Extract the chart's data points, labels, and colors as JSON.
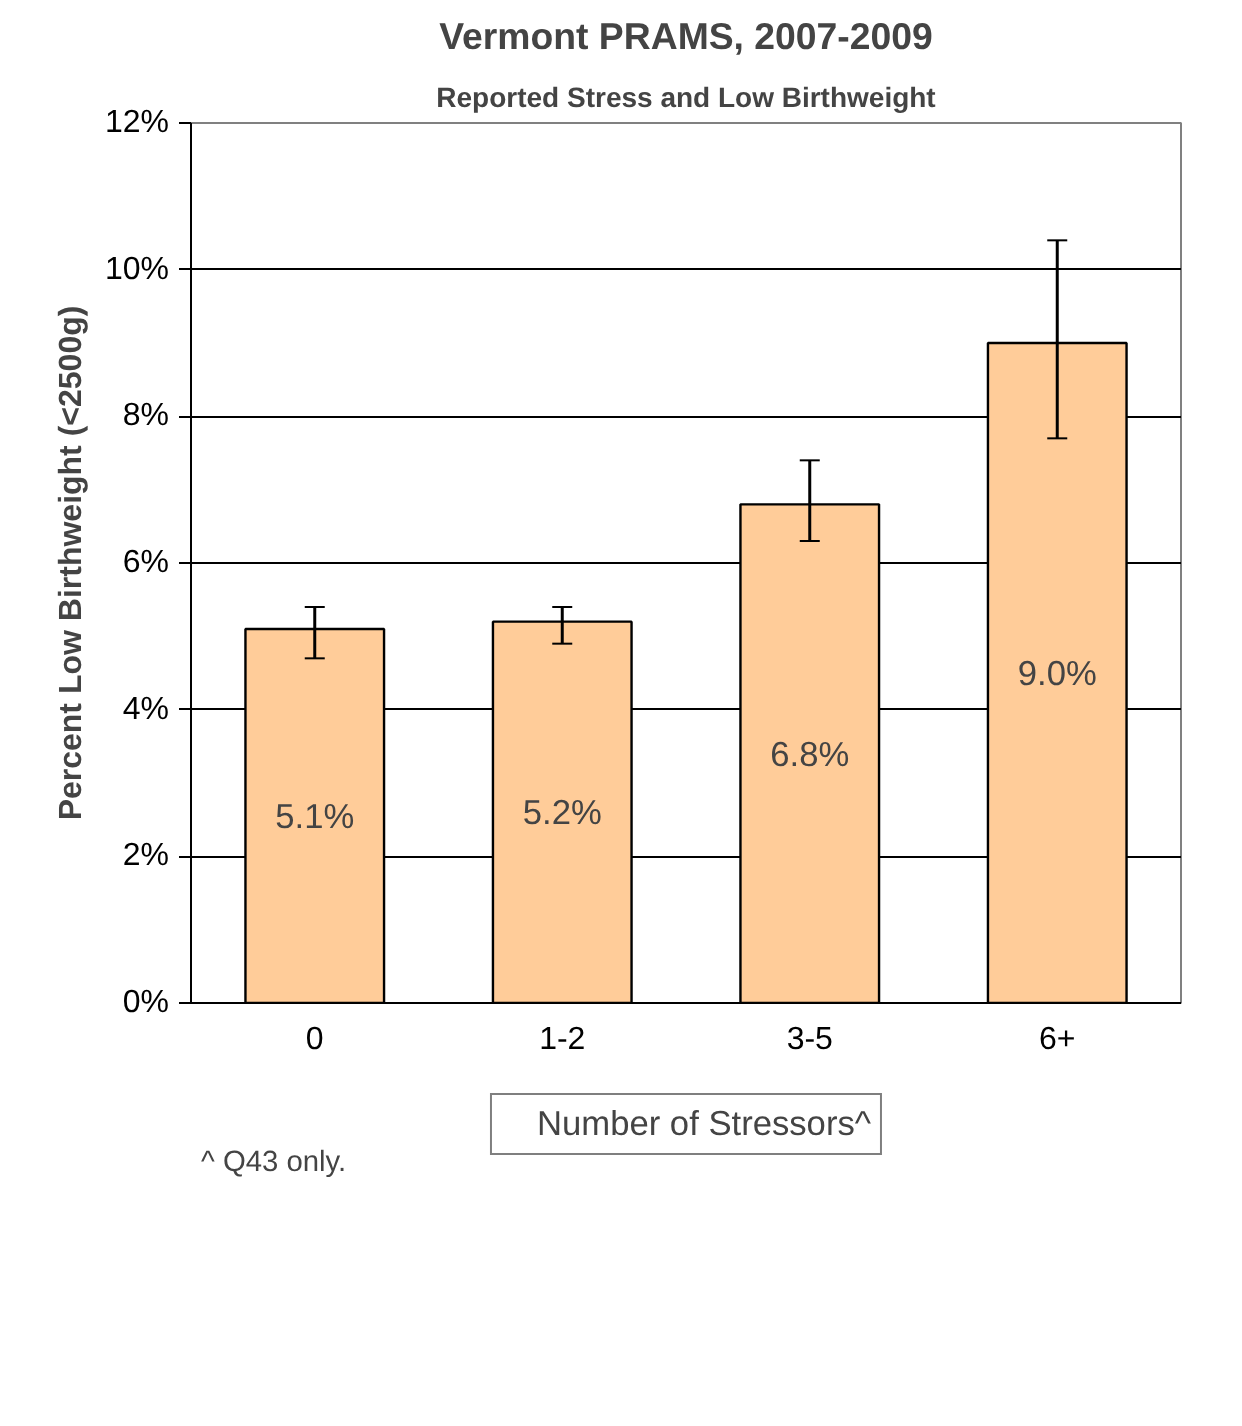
{
  "chart_data": {
    "type": "bar",
    "title": "Vermont PRAMS, 2007-2009",
    "subtitle": "Reported Stress and Low Birthweight",
    "ylabel": "Percent Low Birthweight (<2500g)",
    "categories": [
      "0",
      "1-2",
      "3-5",
      "6+"
    ],
    "series": [
      {
        "name": "Number of Stressors^",
        "color": "#ffcc99",
        "values": [
          5.1,
          5.2,
          6.8,
          9.0
        ],
        "errors": [
          [
            4.7,
            5.4
          ],
          [
            4.9,
            5.4
          ],
          [
            6.3,
            7.4
          ],
          [
            7.7,
            10.4
          ]
        ],
        "value_labels": [
          "5.1%",
          "5.2%",
          "6.8%",
          "9.0%"
        ]
      }
    ],
    "ylim": [
      0,
      12
    ],
    "yticks": [
      {
        "value": 0,
        "label": "0%"
      },
      {
        "value": 2,
        "label": "2%"
      },
      {
        "value": 4,
        "label": "4%"
      },
      {
        "value": 6,
        "label": "6%"
      },
      {
        "value": 8,
        "label": "8%"
      },
      {
        "value": 10,
        "label": "10%"
      },
      {
        "value": 12,
        "label": "12%"
      }
    ],
    "grid": "y",
    "legend": "bottom",
    "annotations": [
      "^ Q43 only."
    ]
  }
}
